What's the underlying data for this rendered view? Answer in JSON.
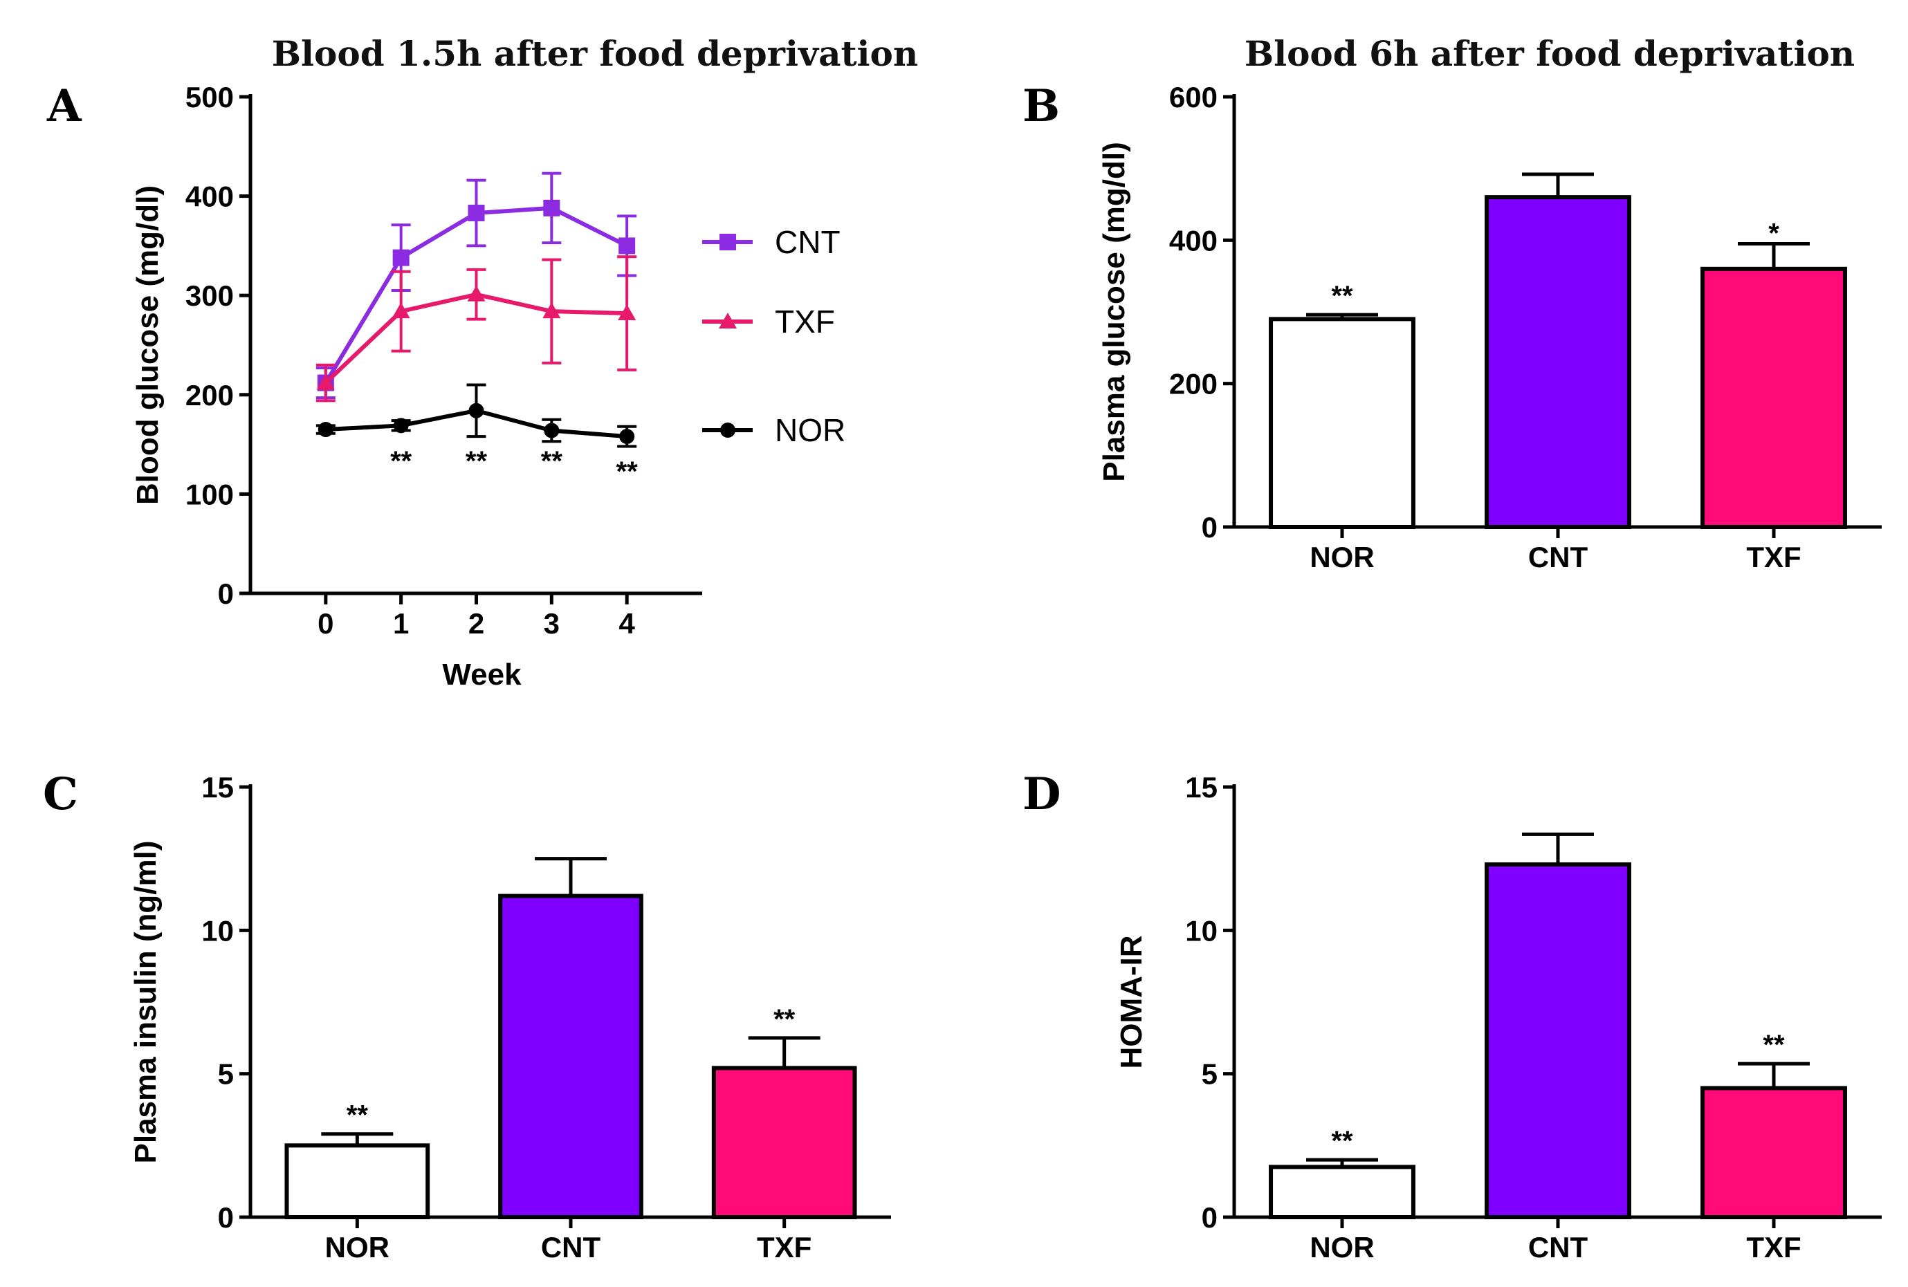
{
  "chart_data": [
    {
      "panel": "A",
      "type": "line",
      "title": "Blood 1.5h after food deprivation",
      "xlabel": "Week",
      "ylabel": "Blood glucose (mg/dl)",
      "x": [
        0,
        1,
        2,
        3,
        4
      ],
      "xlim": [
        -1,
        5
      ],
      "ylim": [
        0,
        500
      ],
      "yticks": [
        0,
        100,
        200,
        300,
        400,
        500
      ],
      "series": [
        {
          "name": "CNT",
          "color": "#8b2be2",
          "marker": "square",
          "values": [
            212,
            338,
            383,
            388,
            350
          ],
          "errors": [
            15,
            33,
            33,
            35,
            30
          ]
        },
        {
          "name": "TXF",
          "color": "#e6196b",
          "marker": "triangle",
          "values": [
            212,
            284,
            301,
            284,
            282
          ],
          "errors": [
            18,
            40,
            25,
            52,
            57
          ]
        },
        {
          "name": "NOR",
          "color": "#000000",
          "marker": "circle",
          "values": [
            165,
            169,
            184,
            164,
            158
          ],
          "errors": [
            4,
            5,
            26,
            11,
            10
          ]
        }
      ],
      "annotations": [
        {
          "x": 1,
          "text": "**"
        },
        {
          "x": 2,
          "text": "**"
        },
        {
          "x": 3,
          "text": "**"
        },
        {
          "x": 4,
          "text": "**"
        }
      ]
    },
    {
      "panel": "B",
      "type": "bar",
      "title": "Blood 6h after food deprivation",
      "ylabel": "Plasma glucose  (mg/dl)",
      "categories": [
        "NOR",
        "CNT",
        "TXF"
      ],
      "values": [
        290,
        460,
        360
      ],
      "errors": [
        6,
        32,
        35
      ],
      "colors": [
        "#ffffff",
        "#7f00ff",
        "#ff0a78"
      ],
      "significance": [
        "**",
        "",
        "*"
      ],
      "ylim": [
        0,
        600
      ],
      "yticks": [
        0,
        200,
        400,
        600
      ]
    },
    {
      "panel": "C",
      "type": "bar",
      "title": "",
      "ylabel": "Plasma insulin (ng/ml)",
      "categories": [
        "NOR",
        "CNT",
        "TXF"
      ],
      "values": [
        2.5,
        11.2,
        5.2
      ],
      "errors": [
        0.4,
        1.3,
        1.05
      ],
      "colors": [
        "#ffffff",
        "#7f00ff",
        "#ff0a78"
      ],
      "significance": [
        "**",
        "",
        "**"
      ],
      "ylim": [
        0,
        15
      ],
      "yticks": [
        0,
        5,
        10,
        15
      ]
    },
    {
      "panel": "D",
      "type": "bar",
      "title": "",
      "ylabel": "HOMA-IR",
      "categories": [
        "NOR",
        "CNT",
        "TXF"
      ],
      "values": [
        1.75,
        12.3,
        4.5
      ],
      "errors": [
        0.25,
        1.05,
        0.85
      ],
      "colors": [
        "#ffffff",
        "#7f00ff",
        "#ff0a78"
      ],
      "significance": [
        "**",
        "",
        "**"
      ],
      "ylim": [
        0,
        15
      ],
      "yticks": [
        0,
        5,
        10,
        15
      ]
    }
  ]
}
